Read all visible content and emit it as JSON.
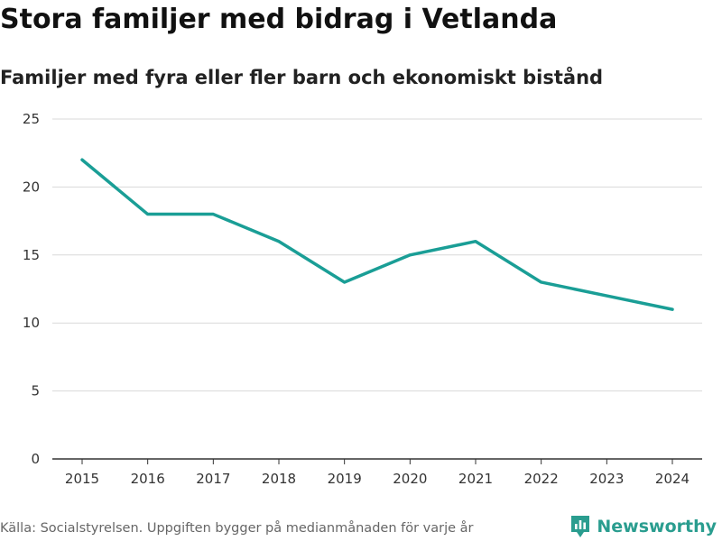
{
  "title": "Stora familjer med bidrag i Vetlanda",
  "subtitle": "Familjer med fyra eller fler barn och ekonomiskt bistånd",
  "source": "Källa: Socialstyrelsen. Uppgiften bygger på medianmånaden för varje år",
  "brand": "Newsworthy",
  "colors": {
    "line": "#1a9e96",
    "grid": "#d9d9d9",
    "axis": "#333333",
    "brand": "#2a9d8f"
  },
  "chart_data": {
    "type": "line",
    "title": "Stora familjer med bidrag i Vetlanda",
    "subtitle": "Familjer med fyra eller fler barn och ekonomiskt bistånd",
    "xlabel": "",
    "ylabel": "",
    "x": [
      "2015",
      "2016",
      "2017",
      "2018",
      "2019",
      "2020",
      "2021",
      "2022",
      "2023",
      "2024"
    ],
    "series": [
      {
        "name": "Familjer med fyra eller fler barn och ekonomiskt bistånd",
        "values": [
          22,
          18,
          18,
          16,
          13,
          15,
          16,
          13,
          12,
          11
        ]
      }
    ],
    "yticks": [
      0,
      5,
      10,
      15,
      20,
      25
    ],
    "ylim": [
      0,
      25
    ],
    "grid": true,
    "legend": "none"
  }
}
